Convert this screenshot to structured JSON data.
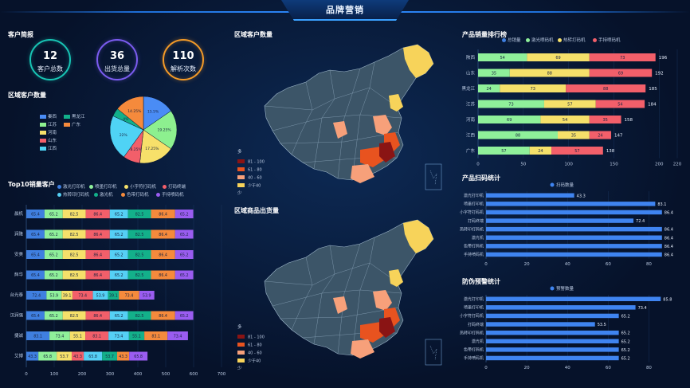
{
  "header": {
    "title": "品牌营销"
  },
  "customer_brief": {
    "title": "客户简报",
    "stats": [
      {
        "value": "12",
        "label": "客户总数",
        "color": "#18c5b5"
      },
      {
        "value": "36",
        "label": "出货总量",
        "color": "#7b5cf0"
      },
      {
        "value": "110",
        "label": "解析次数",
        "color": "#f39a28"
      }
    ]
  },
  "region_customers": {
    "title": "区域客户数量",
    "legend": [
      {
        "name": "秦西",
        "color": "#4a8cf5"
      },
      {
        "name": "黑龙江",
        "color": "#12b08a"
      },
      {
        "name": "江苏",
        "color": "#8df08f"
      },
      {
        "name": "广东",
        "color": "#f58a3c"
      },
      {
        "name": "河南",
        "color": "#f7e06a"
      },
      {
        "name": "山东",
        "color": "#f25f6a"
      },
      {
        "name": "江西",
        "color": "#4fd3f5"
      }
    ]
  },
  "top10": {
    "title": "Top10销量客户",
    "legend": [
      {
        "name": "激光打印机",
        "color": "#3f7fe0"
      },
      {
        "name": "喷墨打印机",
        "color": "#8ff09a"
      },
      {
        "name": "小字符打码机",
        "color": "#f5e06a"
      },
      {
        "name": "打码终端",
        "color": "#f25f6a"
      },
      {
        "name": "热转印打码机",
        "color": "#55d0f5"
      },
      {
        "name": "激光机",
        "color": "#13b08a"
      },
      {
        "name": "色带打码机",
        "color": "#f58a3c"
      },
      {
        "name": "手持喷码机",
        "color": "#9a5cf0"
      }
    ]
  },
  "map1": {
    "title": "区域客户数量",
    "legend_title": "多",
    "legend_bottom": "少",
    "ranges": [
      {
        "label": "81 - 100",
        "color": "#8a1414"
      },
      {
        "label": "61 - 80",
        "color": "#e8531f"
      },
      {
        "label": "40 - 60",
        "color": "#f7a07a"
      },
      {
        "label": "少于40",
        "color": "#f7d35a"
      }
    ]
  },
  "map2": {
    "title": "区域商品出货量",
    "legend_title": "多",
    "legend_bottom": "少",
    "ranges": [
      {
        "label": "81 - 100",
        "color": "#8a1414"
      },
      {
        "label": "61 - 80",
        "color": "#e8531f"
      },
      {
        "label": "40 - 60",
        "color": "#f7a07a"
      },
      {
        "label": "少于40",
        "color": "#f7d35a"
      }
    ]
  },
  "ranking": {
    "title": "产品销量排行榜",
    "legend": [
      {
        "name": "总销量",
        "color": "#3f7fe0"
      },
      {
        "name": "激光喷码机",
        "color": "#8ff09a"
      },
      {
        "name": "热转打码机",
        "color": "#f5e06a"
      },
      {
        "name": "手持喷码机",
        "color": "#f25f6a"
      }
    ]
  },
  "scan_stats": {
    "title": "产品扫码统计",
    "legend": "扫码数量"
  },
  "anti_fake": {
    "title": "防伪预警统计",
    "legend": "预警数量"
  },
  "chart_data": [
    {
      "type": "pie",
      "title": "区域客户数量",
      "categories": [
        "秦西",
        "江苏",
        "河南",
        "山东",
        "江西",
        "黑龙江",
        "广东"
      ],
      "values": [
        15.5,
        19.25,
        17.25,
        8.25,
        22,
        4,
        14.25
      ],
      "labels": [
        "15.5%",
        "19.25%",
        "17.25%",
        "8.25%",
        "22%",
        "4%",
        "14.25%"
      ],
      "colors": [
        "#4a8cf5",
        "#8df08f",
        "#f7e06a",
        "#f25f6a",
        "#4fd3f5",
        "#12b08a",
        "#f58a3c"
      ]
    },
    {
      "type": "bar",
      "orientation": "horizontal-stacked",
      "title": "Top10销量客户",
      "categories": [
        "晨机",
        "润隆",
        "安美",
        "辉华",
        "台光泰",
        "汉润强",
        "捷诚",
        "艾博"
      ],
      "series": [
        {
          "name": "激光打印机",
          "values": [
            65.4,
            65.4,
            65.4,
            65.4,
            72.4,
            65.4,
            83.1,
            43.3
          ]
        },
        {
          "name": "喷墨打印机",
          "values": [
            65.2,
            65.2,
            65.2,
            65.2,
            53.9,
            65.2,
            73.4,
            65.8
          ]
        },
        {
          "name": "小字符打码机",
          "values": [
            82.5,
            82.5,
            82.5,
            82.5,
            39.1,
            82.5,
            55.1,
            53.7
          ]
        },
        {
          "name": "打码终端",
          "values": [
            86.4,
            86.4,
            86.4,
            86.4,
            73.4,
            86.4,
            83.1,
            43.3
          ]
        },
        {
          "name": "热转印打码机",
          "values": [
            65.2,
            65.2,
            65.2,
            65.2,
            53.9,
            65.2,
            73.4,
            65.8
          ]
        },
        {
          "name": "激光机",
          "values": [
            82.5,
            82.5,
            82.5,
            82.5,
            39.1,
            82.5,
            55.1,
            53.7
          ]
        },
        {
          "name": "色带打码机",
          "values": [
            86.4,
            86.4,
            86.4,
            86.4,
            73.4,
            86.4,
            83.1,
            43.3
          ]
        },
        {
          "name": "手持喷码机",
          "values": [
            65.2,
            65.2,
            65.2,
            65.2,
            53.9,
            65.2,
            73.4,
            65.8
          ]
        }
      ],
      "ticks": [
        0,
        100,
        200,
        300,
        400,
        500,
        600,
        700
      ],
      "xlim": [
        0,
        700
      ]
    },
    {
      "type": "bar",
      "orientation": "horizontal-stacked",
      "title": "产品销量排行榜",
      "categories": [
        "陕西",
        "山东",
        "黑龙江",
        "江苏",
        "河南",
        "江西",
        "广东"
      ],
      "series": [
        {
          "name": "激光喷码机",
          "values": [
            54,
            35,
            24,
            73,
            69,
            88,
            57
          ]
        },
        {
          "name": "热转打码机",
          "values": [
            69,
            88,
            73,
            57,
            54,
            35,
            24
          ]
        },
        {
          "name": "手持喷码机",
          "values": [
            73,
            69,
            88,
            54,
            35,
            24,
            57
          ]
        }
      ],
      "totals": [
        196,
        192,
        185,
        184,
        158,
        147,
        138
      ],
      "ticks": [
        0,
        50,
        100,
        150,
        200,
        220
      ],
      "xlim": [
        0,
        220
      ]
    },
    {
      "type": "bar",
      "orientation": "horizontal",
      "title": "产品扫码统计",
      "categories": [
        "激光打印机",
        "喷墨打印机",
        "小字符打码机",
        "打码终端",
        "热转印打码机",
        "激光机",
        "色带打码机",
        "手持喷码机"
      ],
      "values": [
        43.3,
        83.1,
        86.4,
        72.4,
        86.4,
        86.4,
        86.4,
        86.4
      ],
      "ticks": [
        0,
        20,
        40,
        60,
        80
      ],
      "xlim": [
        0,
        90
      ]
    },
    {
      "type": "bar",
      "orientation": "horizontal",
      "title": "防伪预警统计",
      "categories": [
        "激光打印机",
        "喷墨打印机",
        "小字符打码机",
        "打码终端",
        "热转印打码机",
        "激光机",
        "色带打码机",
        "手持喷码机"
      ],
      "values": [
        85.8,
        73.4,
        65.2,
        53.5,
        65.2,
        65.2,
        65.2,
        65.2
      ],
      "ticks": [
        0,
        20,
        40,
        60,
        80
      ],
      "xlim": [
        0,
        90
      ]
    }
  ]
}
